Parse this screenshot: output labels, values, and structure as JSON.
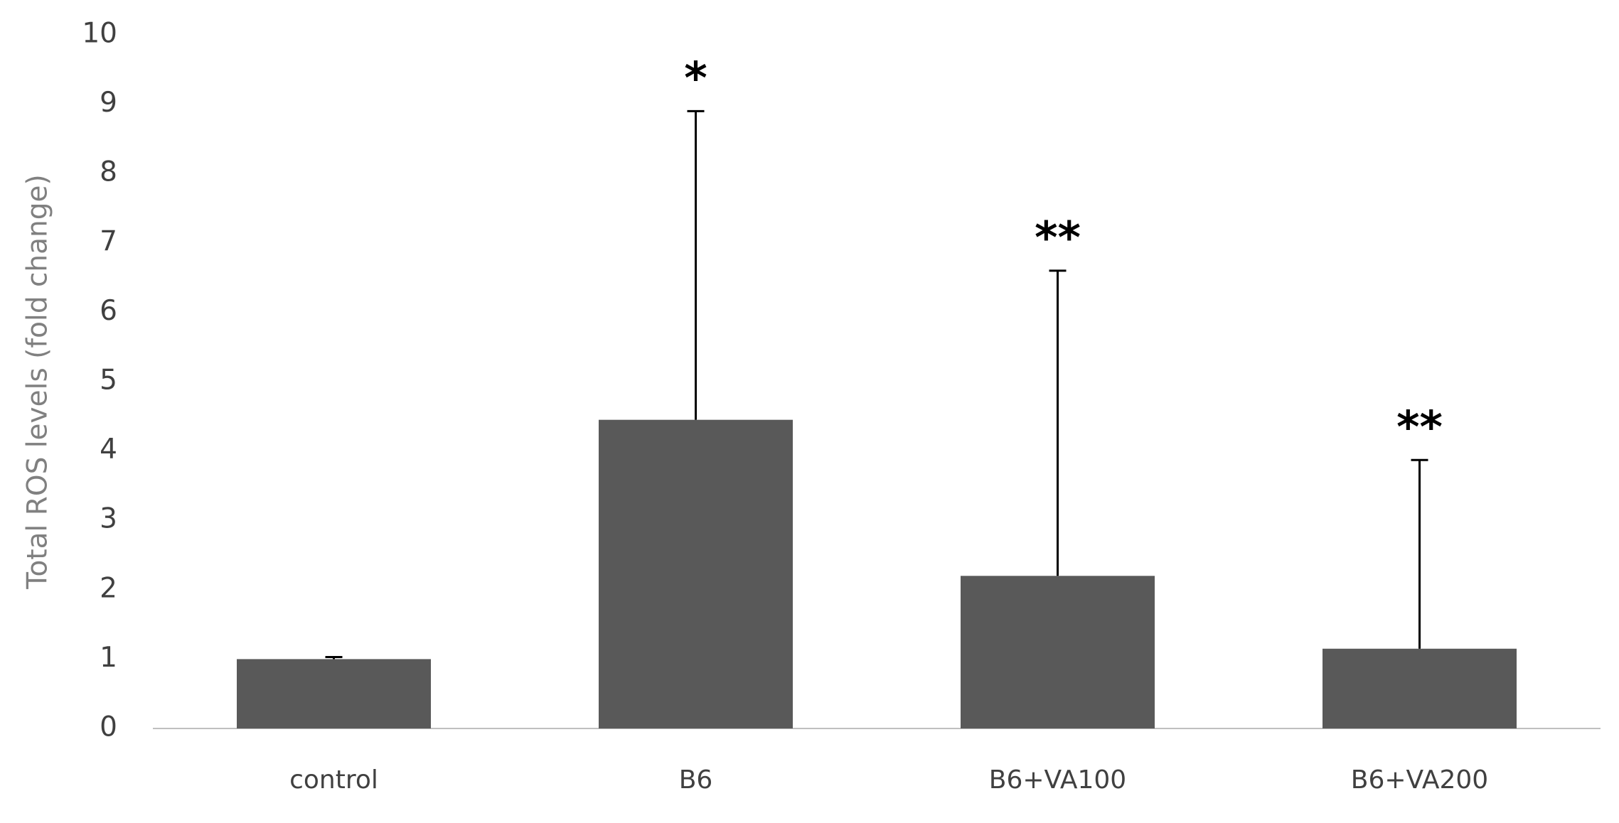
{
  "chart_data": {
    "type": "bar",
    "y_label": "Total ROS levels (fold change)",
    "categories": [
      "control",
      "B6",
      "B6+VA100",
      "B6+VA200"
    ],
    "values": [
      1.0,
      4.45,
      2.2,
      1.15
    ],
    "errors": [
      0.03,
      4.45,
      4.4,
      2.72
    ],
    "significance": [
      null,
      "*",
      "**",
      "**"
    ],
    "color": "#595959",
    "ylim": [
      0,
      10
    ],
    "yticks": [
      0,
      1,
      2,
      3,
      4,
      5,
      6,
      7,
      8,
      9,
      10
    ],
    "grid": false
  }
}
